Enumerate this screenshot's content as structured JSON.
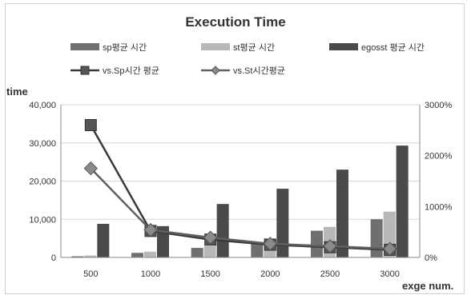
{
  "chart_data": {
    "type": "bar",
    "title": "Execution Time",
    "ylabel": "time",
    "xlabel": "exge num.",
    "categories": [
      "500",
      "1000",
      "1500",
      "2000",
      "2500",
      "3000"
    ],
    "ylim": [
      0,
      40000
    ],
    "y2lim": [
      0,
      3000
    ],
    "y_ticks": [
      "0",
      "10,000",
      "20,000",
      "30,000",
      "40,000"
    ],
    "y2_ticks": [
      "0%",
      "1000%",
      "2000%",
      "3000%"
    ],
    "grid": true,
    "legend_position": "top",
    "series": [
      {
        "name": "sp평균 시간",
        "type": "bar",
        "axis": "left",
        "color": "#6f6f6f",
        "values": [
          300,
          1200,
          2500,
          4000,
          7000,
          10000
        ]
      },
      {
        "name": "st평균 시간",
        "type": "bar",
        "axis": "left",
        "color": "#b8b8b8",
        "values": [
          500,
          1500,
          3000,
          5000,
          8000,
          12000
        ]
      },
      {
        "name": "egosst 평균 시간",
        "type": "bar",
        "axis": "left",
        "color": "#4a4a4a",
        "values": [
          8800,
          8200,
          14000,
          18000,
          23000,
          29300
        ]
      },
      {
        "name": "vs.Sp시간 평균",
        "type": "line",
        "axis": "right",
        "color": "#3a3a3a",
        "marker": "square",
        "values": [
          2600,
          520,
          350,
          250,
          200,
          150
        ]
      },
      {
        "name": "vs.St시간평균",
        "type": "line",
        "axis": "right",
        "color": "#606060",
        "marker": "diamond",
        "values": [
          1750,
          540,
          390,
          270,
          220,
          170
        ]
      }
    ]
  }
}
